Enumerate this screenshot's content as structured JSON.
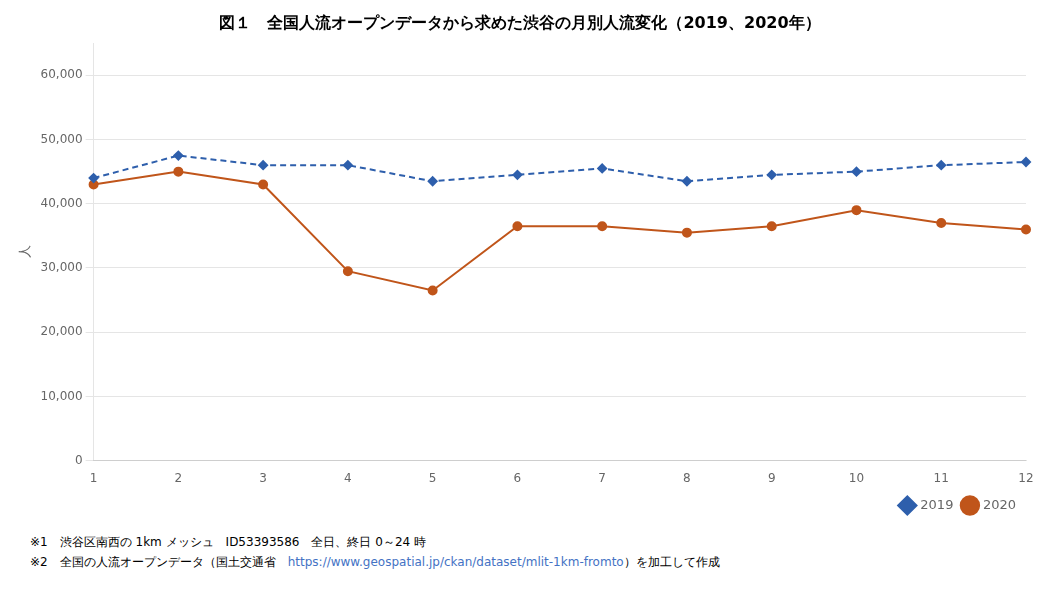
{
  "chart_data": {
    "type": "line",
    "title": "図１　全国人流オープンデータから求めた渋谷の月別人流変化（2019、2020年）",
    "categories": [
      "1",
      "2",
      "3",
      "4",
      "5",
      "6",
      "7",
      "8",
      "9",
      "10",
      "11",
      "12"
    ],
    "series": [
      {
        "name": "2019",
        "color": "#2E5FAC",
        "marker": "diamond",
        "line_style": "dashed",
        "values": [
          44000,
          47500,
          46000,
          46000,
          43500,
          44500,
          45500,
          43500,
          44500,
          45000,
          46000,
          46500
        ]
      },
      {
        "name": "2020",
        "color": "#C0551A",
        "marker": "circle",
        "line_style": "solid",
        "values": [
          43000,
          45000,
          43000,
          29500,
          26500,
          36500,
          36500,
          35500,
          36500,
          39000,
          37000,
          36000
        ]
      }
    ],
    "ylabel": "人",
    "ylim": [
      0,
      65000
    ],
    "yticks": [
      0,
      {
        "value": 10000,
        "label": "10,000"
      },
      {
        "value": 20000,
        "label": "20,000"
      },
      {
        "value": 30000,
        "label": "30,000"
      },
      {
        "value": 40000,
        "label": "40,000"
      },
      {
        "value": 50000,
        "label": "50,000"
      },
      {
        "value": 60000,
        "label": "60,000"
      }
    ],
    "grid": true,
    "legend": "lower right",
    "annotations": [
      "※1　渋谷区南西の 1km メッシュ　ID53393586　全日、終日 0～24 時",
      "※2　全国の人流オープンデータ（国土交通省　https://www.geospatial.jp/ckan/dataset/mlit-1km-fromto）を加工して作成"
    ]
  }
}
